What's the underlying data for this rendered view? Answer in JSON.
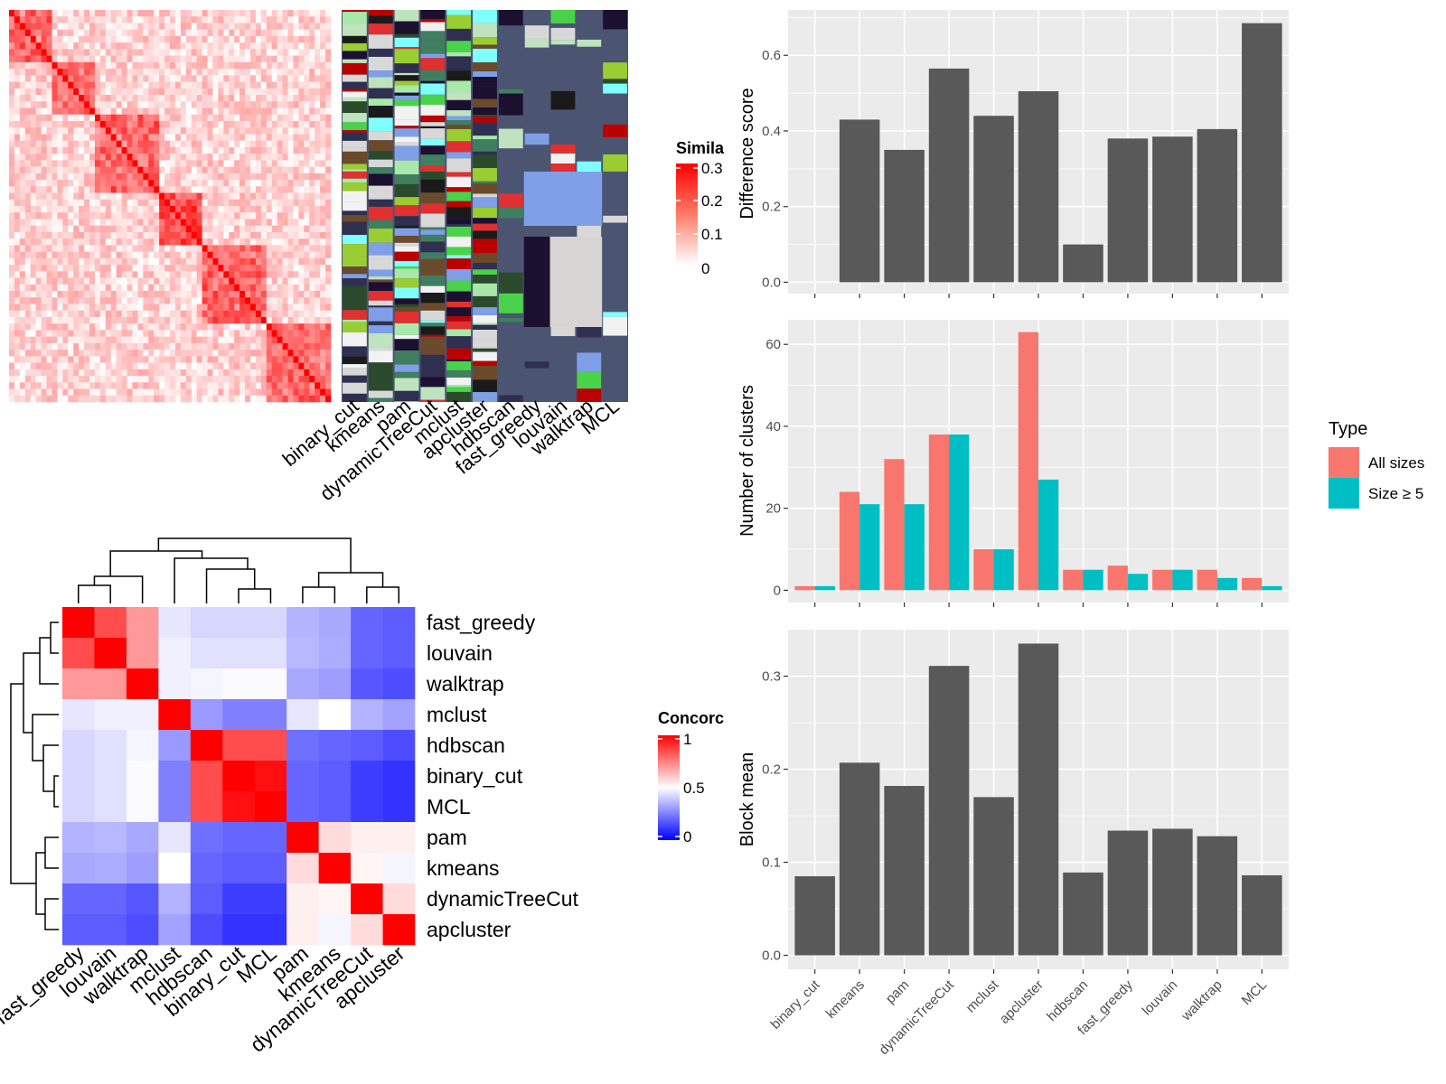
{
  "colors": {
    "similarity_high": "#ff0000",
    "similarity_low": "#ffffff",
    "concordance_high": "#ff0000",
    "concordance_mid": "#ffffff",
    "concordance_low": "#0000ff",
    "bar_fill": "#595959",
    "panel_bg": "#ebebeb",
    "all_sizes": "#f8766d",
    "size_ge5": "#00bfc4",
    "stripe_bg": "#4b5571"
  },
  "similarity_heatmap": {
    "legend_title": "Simila",
    "legend_ticks": [
      "0.3",
      "0.2",
      "0.1",
      "0"
    ],
    "stripe_labels": [
      "binary_cut",
      "kmeans",
      "pam",
      "dynamicTreeCut",
      "mclust",
      "apcluster",
      "hdbscan",
      "fast_greedy",
      "louvain",
      "walktrap",
      "MCL"
    ]
  },
  "concordance_heatmap": {
    "legend_title": "Concorc",
    "legend_ticks": [
      "1",
      "0.5",
      "0"
    ],
    "row_labels": [
      "fast_greedy",
      "louvain",
      "walktrap",
      "mclust",
      "hdbscan",
      "binary_cut",
      "MCL",
      "pam",
      "kmeans",
      "dynamicTreeCut",
      "apcluster"
    ],
    "col_labels": [
      "fast_greedy",
      "louvain",
      "walktrap",
      "mclust",
      "hdbscan",
      "binary_cut",
      "MCL",
      "pam",
      "kmeans",
      "dynamicTreeCut",
      "apcluster"
    ],
    "matrix": [
      [
        1.0,
        0.85,
        0.7,
        0.45,
        0.42,
        0.42,
        0.42,
        0.35,
        0.33,
        0.2,
        0.18
      ],
      [
        0.85,
        1.0,
        0.7,
        0.47,
        0.44,
        0.44,
        0.44,
        0.36,
        0.34,
        0.2,
        0.18
      ],
      [
        0.7,
        0.7,
        1.0,
        0.47,
        0.48,
        0.49,
        0.49,
        0.33,
        0.31,
        0.17,
        0.15
      ],
      [
        0.45,
        0.47,
        0.47,
        1.0,
        0.3,
        0.25,
        0.25,
        0.45,
        0.5,
        0.35,
        0.32
      ],
      [
        0.42,
        0.44,
        0.48,
        0.3,
        1.0,
        0.85,
        0.85,
        0.22,
        0.2,
        0.18,
        0.15
      ],
      [
        0.42,
        0.44,
        0.49,
        0.25,
        0.85,
        1.0,
        0.97,
        0.2,
        0.18,
        0.12,
        0.1
      ],
      [
        0.42,
        0.44,
        0.49,
        0.25,
        0.85,
        0.97,
        1.0,
        0.2,
        0.18,
        0.12,
        0.1
      ],
      [
        0.35,
        0.36,
        0.33,
        0.45,
        0.22,
        0.2,
        0.2,
        1.0,
        0.57,
        0.53,
        0.53
      ],
      [
        0.33,
        0.34,
        0.31,
        0.5,
        0.2,
        0.18,
        0.18,
        0.57,
        1.0,
        0.52,
        0.48
      ],
      [
        0.2,
        0.2,
        0.17,
        0.35,
        0.18,
        0.12,
        0.12,
        0.53,
        0.52,
        1.0,
        0.57
      ],
      [
        0.18,
        0.18,
        0.15,
        0.32,
        0.15,
        0.1,
        0.1,
        0.53,
        0.48,
        0.57,
        1.0
      ]
    ]
  },
  "chart_data": [
    {
      "type": "bar",
      "categories": [
        "binary_cut",
        "kmeans",
        "pam",
        "dynamicTreeCut",
        "mclust",
        "apcluster",
        "hdbscan",
        "fast_greedy",
        "louvain",
        "walktrap",
        "MCL"
      ],
      "values": [
        0.0,
        0.43,
        0.35,
        0.565,
        0.44,
        0.505,
        0.1,
        0.38,
        0.385,
        0.405,
        0.685
      ],
      "ylabel": "Difference score",
      "yticks": [
        "0.0",
        "0.2",
        "0.4",
        "0.6"
      ],
      "ylim": [
        -0.03,
        0.72
      ]
    },
    {
      "type": "bar",
      "categories": [
        "binary_cut",
        "kmeans",
        "pam",
        "dynamicTreeCut",
        "mclust",
        "apcluster",
        "hdbscan",
        "fast_greedy",
        "louvain",
        "walktrap",
        "MCL"
      ],
      "series": [
        {
          "name": "All sizes",
          "values": [
            1,
            24,
            32,
            38,
            10,
            63,
            5,
            6,
            5,
            5,
            3
          ]
        },
        {
          "name": "Size ≥ 5",
          "values": [
            1,
            21,
            21,
            38,
            10,
            27,
            5,
            4,
            5,
            3,
            1
          ]
        }
      ],
      "ylabel": "Number of clusters",
      "yticks": [
        "0",
        "20",
        "40",
        "60"
      ],
      "ylim": [
        -3,
        66
      ],
      "legend_title": "Type",
      "legend_position": "right"
    },
    {
      "type": "bar",
      "categories": [
        "binary_cut",
        "kmeans",
        "pam",
        "dynamicTreeCut",
        "mclust",
        "apcluster",
        "hdbscan",
        "fast_greedy",
        "louvain",
        "walktrap",
        "MCL"
      ],
      "values": [
        0.085,
        0.207,
        0.182,
        0.311,
        0.17,
        0.335,
        0.089,
        0.134,
        0.136,
        0.128,
        0.086
      ],
      "ylabel": "Block mean",
      "yticks": [
        "0.0",
        "0.1",
        "0.2",
        "0.3"
      ],
      "ylim": [
        -0.015,
        0.35
      ]
    }
  ]
}
